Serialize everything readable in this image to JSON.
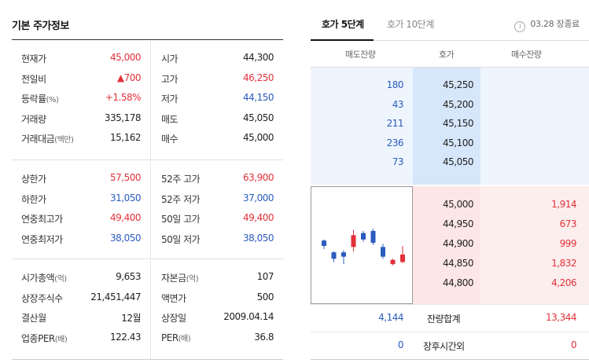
{
  "left_panel": {
    "title": "기본 주가정보",
    "section1": [
      {
        "label": "현재가",
        "unit": "",
        "value": "45,000",
        "color": "red",
        "label2": "시가",
        "unit2": "",
        "value2": "44,300",
        "color2": "dark"
      },
      {
        "label": "전일비",
        "unit": "",
        "value": "▲700",
        "color": "red",
        "label2": "고가",
        "unit2": "",
        "value2": "46,250",
        "color2": "red"
      },
      {
        "label": "등락률",
        "unit": "(%)",
        "value": "+1.58%",
        "color": "red",
        "label2": "저가",
        "unit2": "",
        "value2": "44,150",
        "color2": "blue"
      },
      {
        "label": "거래량",
        "unit": "",
        "value": "335,178",
        "color": "dark",
        "label2": "매도",
        "unit2": "",
        "value2": "45,050",
        "color2": "dark"
      },
      {
        "label": "거래대금",
        "unit": "(백만)",
        "value": "15,162",
        "color": "dark",
        "label2": "매수",
        "unit2": "",
        "value2": "45,000",
        "color2": "dark"
      }
    ],
    "section2": [
      {
        "label": "상한가",
        "unit": "",
        "value": "57,500",
        "color": "red",
        "label2": "52주 고가",
        "unit2": "",
        "value2": "63,900",
        "color2": "red"
      },
      {
        "label": "하한가",
        "unit": "",
        "value": "31,050",
        "color": "blue",
        "label2": "52주 저가",
        "unit2": "",
        "value2": "37,000",
        "color2": "blue"
      },
      {
        "label": "연중최고가",
        "unit": "",
        "value": "49,400",
        "color": "red",
        "label2": "50일 고가",
        "unit2": "",
        "value2": "49,400",
        "color2": "red"
      },
      {
        "label": "연중최저가",
        "unit": "",
        "value": "38,050",
        "color": "blue",
        "label2": "50일 저가",
        "unit2": "",
        "value2": "38,050",
        "color2": "blue"
      }
    ],
    "section3": [
      {
        "label": "시가총액",
        "unit": "(억)",
        "value": "9,653",
        "color": "dark",
        "label2": "자본금",
        "unit2": "(억)",
        "value2": "107",
        "color2": "dark"
      },
      {
        "label": "상장주식수",
        "unit": "",
        "value": "21,451,447",
        "color": "dark",
        "label2": "액면가",
        "unit2": "",
        "value2": "500",
        "color2": "dark"
      },
      {
        "label": "결산월",
        "unit": "",
        "value": "12월",
        "color": "dark",
        "label2": "상장일",
        "unit2": "",
        "value2": "2009.04.14",
        "color2": "dark"
      },
      {
        "label": "업종PER",
        "unit": "(배)",
        "value": "122.43",
        "color": "dark",
        "label2": "PER",
        "unit2": "(배)",
        "value2": "36.8",
        "color2": "dark"
      }
    ]
  },
  "right_panel": {
    "tabs": [
      {
        "label": "호가 5단계",
        "active": true
      },
      {
        "label": "호가 10단계",
        "active": false
      }
    ],
    "status": "03.28 장종료",
    "info_icon_glyph": "i",
    "headers": {
      "ask_qty": "매도잔량",
      "price": "호가",
      "bid_qty": "매수잔량"
    },
    "asks": [
      {
        "qty": "180",
        "price": "45,250"
      },
      {
        "qty": "43",
        "price": "45,200"
      },
      {
        "qty": "211",
        "price": "45,150"
      },
      {
        "qty": "236",
        "price": "45,100"
      },
      {
        "qty": "73",
        "price": "45,050"
      }
    ],
    "bids": [
      {
        "price": "45,000",
        "qty": "1,914"
      },
      {
        "price": "44,950",
        "qty": "673"
      },
      {
        "price": "44,900",
        "qty": "999"
      },
      {
        "price": "44,850",
        "qty": "1,832"
      },
      {
        "price": "44,800",
        "qty": "4,206"
      }
    ],
    "total": {
      "label": "잔량합계",
      "ask": "4,144",
      "bid": "13,344"
    },
    "after_hours": {
      "label": "장후시간외",
      "ask": "0",
      "bid": "0"
    }
  },
  "mini_chart": {
    "type": "candlestick",
    "colors": {
      "up": "#e2313a",
      "down": "#2b5bbd"
    },
    "candles": [
      {
        "dir": "down",
        "high": 45100,
        "low": 44650,
        "open": 45050,
        "close": 44800
      },
      {
        "dir": "down",
        "high": 44550,
        "low": 44050,
        "open": 44500,
        "close": 44200
      },
      {
        "dir": "down",
        "high": 44600,
        "low": 43950,
        "open": 44500,
        "close": 44300
      },
      {
        "dir": "up",
        "high": 45550,
        "low": 44550,
        "open": 44750,
        "close": 45300
      },
      {
        "dir": "down",
        "high": 45500,
        "low": 45000,
        "open": 45400,
        "close": 45100
      },
      {
        "dir": "down",
        "high": 45600,
        "low": 44850,
        "open": 45500,
        "close": 44950
      },
      {
        "dir": "down",
        "high": 44900,
        "low": 44200,
        "open": 44750,
        "close": 44300
      },
      {
        "dir": "up",
        "high": 44200,
        "low": 43900,
        "open": 43950,
        "close": 44150
      },
      {
        "dir": "up",
        "high": 44800,
        "low": 44000,
        "open": 44050,
        "close": 44400
      }
    ],
    "price_range": [
      43700,
      45900
    ]
  }
}
